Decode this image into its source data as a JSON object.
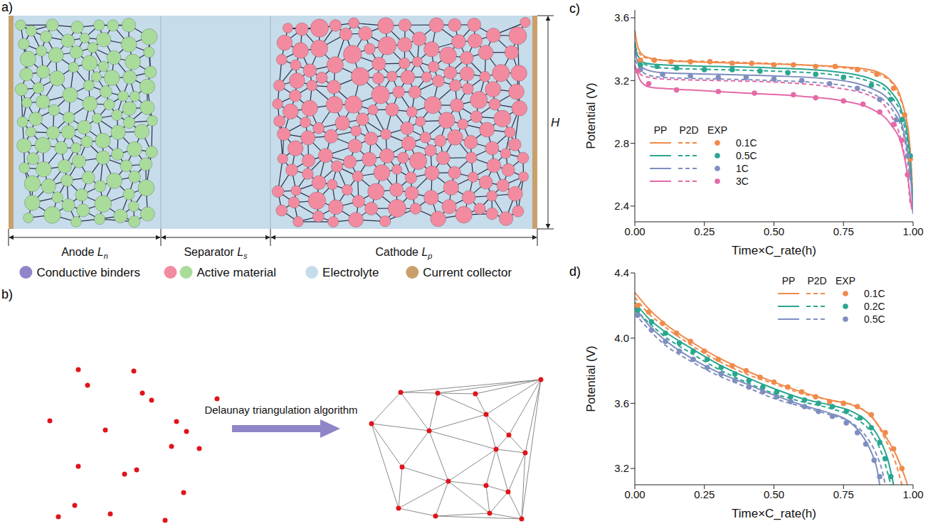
{
  "panel_a": {
    "letter": "a)",
    "regions": [
      {
        "name": "Anode",
        "symbol": "L",
        "subscript": "n"
      },
      {
        "name": "Separator",
        "symbol": "L",
        "subscript": "s"
      },
      {
        "name": "Cathode",
        "symbol": "L",
        "subscript": "p"
      }
    ],
    "height_label": "H",
    "legend": [
      {
        "label": "Conductive binders",
        "colors": [
          "#8f86c9"
        ]
      },
      {
        "label": "Active material",
        "colors": [
          "#f38ba0",
          "#a9dc9b"
        ]
      },
      {
        "label": "Electrolyte",
        "colors": [
          "#c6dcea"
        ]
      },
      {
        "label": "Current collector",
        "colors": [
          "#c9a06b"
        ]
      }
    ]
  },
  "panel_b": {
    "letter": "b)",
    "arrow_label": "Delaunay triangulation algorithm"
  },
  "chart_data": [
    {
      "letter": "c)",
      "type": "line",
      "x_label": "Time×C_rate(h)",
      "y_label": "Potential (V)",
      "xlim": [
        0,
        1
      ],
      "xticks": [
        {
          "value": 0,
          "label": "0.00"
        },
        0.25,
        {
          "value": 0.5,
          "label": "0.50"
        },
        0.75,
        {
          "value": 1,
          "label": "1.00"
        }
      ],
      "ylim": [
        2.3,
        3.65
      ],
      "yticks": [
        2.4,
        2.8,
        3.2,
        3.6
      ],
      "legend": "center left",
      "legend_columns": [
        "PP",
        "P2D",
        "EXP"
      ],
      "series": [
        {
          "name": "0.1C",
          "color": "#f08a4b",
          "curves": [
            {
              "model": "PP",
              "line_style": "solid",
              "x": [
                0,
                0.01,
                0.03,
                0.06,
                0.1,
                0.2,
                0.4,
                0.6,
                0.8,
                0.88,
                0.92,
                0.95,
                0.97,
                0.985,
                0.995,
                1
              ],
              "values": [
                3.52,
                3.42,
                3.36,
                3.34,
                3.33,
                3.32,
                3.31,
                3.3,
                3.28,
                3.25,
                3.2,
                3.12,
                3.0,
                2.85,
                2.6,
                2.35
              ]
            },
            {
              "model": "P2D",
              "line_style": "dashed",
              "x": [
                0,
                0.03,
                0.1,
                0.3,
                0.6,
                0.8,
                0.9,
                0.95,
                0.98,
                0.995,
                1
              ],
              "values": [
                3.42,
                3.35,
                3.33,
                3.32,
                3.3,
                3.27,
                3.22,
                3.1,
                2.9,
                2.6,
                2.35
              ]
            },
            {
              "model": "EXP",
              "type": "scatter",
              "marker": "circle",
              "x": [
                0.02,
                0.07,
                0.13,
                0.2,
                0.27,
                0.35,
                0.42,
                0.5,
                0.57,
                0.65,
                0.72,
                0.8,
                0.87,
                0.93,
                0.97,
                0.99
              ],
              "values": [
                3.33,
                3.33,
                3.32,
                3.32,
                3.32,
                3.31,
                3.31,
                3.3,
                3.3,
                3.29,
                3.29,
                3.27,
                3.24,
                3.15,
                2.98,
                2.7
              ]
            }
          ]
        },
        {
          "name": "0.5C",
          "color": "#2aa68f",
          "curves": [
            {
              "model": "PP",
              "line_style": "solid",
              "x": [
                0,
                0.01,
                0.04,
                0.1,
                0.3,
                0.5,
                0.7,
                0.85,
                0.92,
                0.96,
                0.98,
                0.995,
                1
              ],
              "values": [
                3.45,
                3.36,
                3.31,
                3.3,
                3.29,
                3.28,
                3.26,
                3.21,
                3.13,
                3.0,
                2.85,
                2.55,
                2.35
              ]
            },
            {
              "model": "P2D",
              "line_style": "dashed",
              "x": [
                0,
                0.04,
                0.1,
                0.3,
                0.5,
                0.7,
                0.85,
                0.93,
                0.97,
                0.99,
                1
              ],
              "values": [
                3.38,
                3.3,
                3.28,
                3.27,
                3.26,
                3.24,
                3.19,
                3.08,
                2.9,
                2.65,
                2.4
              ]
            },
            {
              "model": "EXP",
              "type": "scatter",
              "marker": "circle",
              "x": [
                0.02,
                0.08,
                0.15,
                0.25,
                0.35,
                0.45,
                0.55,
                0.65,
                0.75,
                0.85,
                0.92,
                0.96,
                0.99
              ],
              "values": [
                3.3,
                3.29,
                3.28,
                3.27,
                3.27,
                3.26,
                3.25,
                3.24,
                3.22,
                3.17,
                3.08,
                2.95,
                2.72
              ]
            }
          ]
        },
        {
          "name": "1C",
          "color": "#7f8ebf",
          "curves": [
            {
              "model": "PP",
              "line_style": "solid",
              "x": [
                0,
                0.01,
                0.04,
                0.1,
                0.3,
                0.5,
                0.7,
                0.85,
                0.92,
                0.96,
                0.98,
                0.995,
                1
              ],
              "values": [
                3.4,
                3.32,
                3.27,
                3.25,
                3.24,
                3.23,
                3.21,
                3.15,
                3.06,
                2.92,
                2.75,
                2.5,
                2.35
              ]
            },
            {
              "model": "P2D",
              "line_style": "dashed",
              "x": [
                0,
                0.04,
                0.1,
                0.3,
                0.5,
                0.7,
                0.85,
                0.93,
                0.97,
                0.99
              ],
              "values": [
                3.33,
                3.24,
                3.22,
                3.21,
                3.2,
                3.18,
                3.12,
                3.0,
                2.82,
                2.55
              ]
            },
            {
              "model": "EXP",
              "type": "scatter",
              "marker": "circle",
              "x": [
                0.02,
                0.1,
                0.2,
                0.3,
                0.4,
                0.5,
                0.6,
                0.7,
                0.8,
                0.88,
                0.94,
                0.98
              ],
              "values": [
                3.27,
                3.24,
                3.23,
                3.22,
                3.22,
                3.21,
                3.2,
                3.18,
                3.15,
                3.08,
                2.95,
                2.72
              ]
            }
          ]
        },
        {
          "name": "3C",
          "color": "#e46aa7",
          "curves": [
            {
              "model": "PP",
              "line_style": "solid",
              "x": [
                0,
                0.02,
                0.05,
                0.1,
                0.2,
                0.4,
                0.6,
                0.75,
                0.85,
                0.92,
                0.96,
                0.98,
                0.995
              ],
              "values": [
                3.3,
                3.2,
                3.16,
                3.15,
                3.14,
                3.12,
                3.1,
                3.07,
                3.02,
                2.92,
                2.78,
                2.6,
                2.38
              ]
            },
            {
              "model": "P2D",
              "line_style": "dashed",
              "x": [
                0,
                0.03,
                0.1,
                0.3,
                0.5,
                0.7,
                0.85,
                0.92,
                0.96,
                0.98,
                0.99
              ],
              "values": [
                3.28,
                3.23,
                3.21,
                3.2,
                3.19,
                3.16,
                3.1,
                2.98,
                2.8,
                2.6,
                2.4
              ]
            },
            {
              "model": "EXP",
              "type": "scatter",
              "marker": "circle",
              "x": [
                0.01,
                0.05,
                0.15,
                0.3,
                0.43,
                0.57,
                0.65,
                0.75,
                0.82,
                0.88,
                0.93,
                0.96,
                0.98
              ],
              "values": [
                3.26,
                3.18,
                3.14,
                3.13,
                3.12,
                3.11,
                3.09,
                3.07,
                3.05,
                3.0,
                2.92,
                2.82,
                2.6
              ]
            }
          ]
        }
      ]
    },
    {
      "letter": "d)",
      "type": "line",
      "x_label": "Time×C_rate(h)",
      "y_label": "Potential (V)",
      "xlim": [
        0,
        1
      ],
      "xticks": [
        {
          "value": 0,
          "label": "0.00"
        },
        0.25,
        {
          "value": 0.5,
          "label": "0.50"
        },
        0.75,
        {
          "value": 1,
          "label": "1.00"
        }
      ],
      "ylim": [
        3.1,
        4.4
      ],
      "yticks": [
        3.2,
        3.6,
        {
          "value": 4,
          "label": "4.0"
        },
        4.4
      ],
      "legend": "upper right",
      "legend_columns": [
        "PP",
        "P2D",
        "EXP"
      ],
      "series": [
        {
          "name": "0.1C",
          "color": "#f08a4b",
          "curves": [
            {
              "model": "PP",
              "line_style": "solid",
              "x": [
                0,
                0.05,
                0.1,
                0.2,
                0.3,
                0.4,
                0.5,
                0.6,
                0.7,
                0.78,
                0.85,
                0.9,
                0.94,
                0.97,
                0.98
              ],
              "values": [
                4.28,
                4.18,
                4.1,
                3.98,
                3.88,
                3.8,
                3.73,
                3.67,
                3.62,
                3.59,
                3.52,
                3.4,
                3.28,
                3.15,
                3.1
              ]
            },
            {
              "model": "P2D",
              "line_style": "dashed",
              "x": [
                0,
                0.05,
                0.1,
                0.2,
                0.3,
                0.4,
                0.5,
                0.6,
                0.7,
                0.8,
                0.86,
                0.9,
                0.94,
                0.96
              ],
              "values": [
                4.25,
                4.15,
                4.08,
                3.96,
                3.86,
                3.78,
                3.72,
                3.66,
                3.62,
                3.58,
                3.5,
                3.38,
                3.22,
                3.1
              ]
            },
            {
              "model": "EXP",
              "type": "scatter",
              "marker": "circle",
              "x": [
                0.01,
                0.05,
                0.1,
                0.15,
                0.2,
                0.25,
                0.3,
                0.35,
                0.4,
                0.45,
                0.5,
                0.55,
                0.6,
                0.65,
                0.7,
                0.75,
                0.8,
                0.85,
                0.9,
                0.93,
                0.96
              ],
              "values": [
                4.2,
                4.16,
                4.09,
                4.03,
                3.98,
                3.92,
                3.87,
                3.83,
                3.8,
                3.76,
                3.73,
                3.7,
                3.67,
                3.64,
                3.61,
                3.6,
                3.58,
                3.53,
                3.42,
                3.32,
                3.2
              ]
            }
          ]
        },
        {
          "name": "0.2C",
          "color": "#2aa68f",
          "curves": [
            {
              "model": "PP",
              "line_style": "solid",
              "x": [
                0,
                0.05,
                0.1,
                0.2,
                0.3,
                0.4,
                0.5,
                0.6,
                0.7,
                0.78,
                0.84,
                0.88,
                0.91,
                0.93
              ],
              "values": [
                4.22,
                4.12,
                4.05,
                3.94,
                3.84,
                3.76,
                3.69,
                3.63,
                3.59,
                3.55,
                3.48,
                3.38,
                3.25,
                3.1
              ]
            },
            {
              "model": "P2D",
              "line_style": "dashed",
              "x": [
                0,
                0.1,
                0.2,
                0.3,
                0.4,
                0.5,
                0.6,
                0.7,
                0.8,
                0.85,
                0.89,
                0.92
              ],
              "values": [
                4.18,
                4.02,
                3.91,
                3.81,
                3.73,
                3.66,
                3.61,
                3.57,
                3.5,
                3.42,
                3.28,
                3.1
              ]
            },
            {
              "model": "EXP",
              "type": "scatter",
              "marker": "circle",
              "x": [
                0.01,
                0.06,
                0.11,
                0.16,
                0.21,
                0.26,
                0.31,
                0.36,
                0.41,
                0.46,
                0.51,
                0.56,
                0.61,
                0.66,
                0.71,
                0.76,
                0.81,
                0.85,
                0.88,
                0.9,
                0.92
              ],
              "values": [
                4.17,
                4.1,
                4.03,
                3.97,
                3.92,
                3.87,
                3.82,
                3.78,
                3.74,
                3.7,
                3.67,
                3.64,
                3.62,
                3.6,
                3.58,
                3.55,
                3.51,
                3.45,
                3.36,
                3.26,
                3.15
              ]
            }
          ]
        },
        {
          "name": "0.5C",
          "color": "#7f8ebf",
          "curves": [
            {
              "model": "PP",
              "line_style": "solid",
              "x": [
                0,
                0.05,
                0.1,
                0.2,
                0.3,
                0.4,
                0.5,
                0.6,
                0.7,
                0.76,
                0.81,
                0.85,
                0.87,
                0.88
              ],
              "values": [
                4.19,
                4.08,
                4.0,
                3.88,
                3.79,
                3.72,
                3.65,
                3.59,
                3.54,
                3.5,
                3.42,
                3.3,
                3.2,
                3.1
              ]
            },
            {
              "model": "P2D",
              "line_style": "dashed",
              "x": [
                0,
                0.1,
                0.2,
                0.3,
                0.4,
                0.5,
                0.6,
                0.7,
                0.78,
                0.83,
                0.87,
                0.89,
                0.9
              ],
              "values": [
                4.15,
                3.97,
                3.86,
                3.77,
                3.7,
                3.63,
                3.58,
                3.53,
                3.48,
                3.4,
                3.28,
                3.18,
                3.1
              ]
            },
            {
              "model": "EXP",
              "type": "scatter",
              "marker": "circle",
              "x": [
                0.01,
                0.06,
                0.11,
                0.16,
                0.21,
                0.26,
                0.31,
                0.36,
                0.41,
                0.46,
                0.51,
                0.56,
                0.61,
                0.66,
                0.71,
                0.76,
                0.8,
                0.83,
                0.86,
                0.88
              ],
              "values": [
                4.14,
                4.05,
                3.98,
                3.92,
                3.87,
                3.82,
                3.78,
                3.74,
                3.7,
                3.67,
                3.64,
                3.61,
                3.58,
                3.55,
                3.52,
                3.48,
                3.42,
                3.35,
                3.25,
                3.15
              ]
            }
          ]
        }
      ]
    }
  ]
}
